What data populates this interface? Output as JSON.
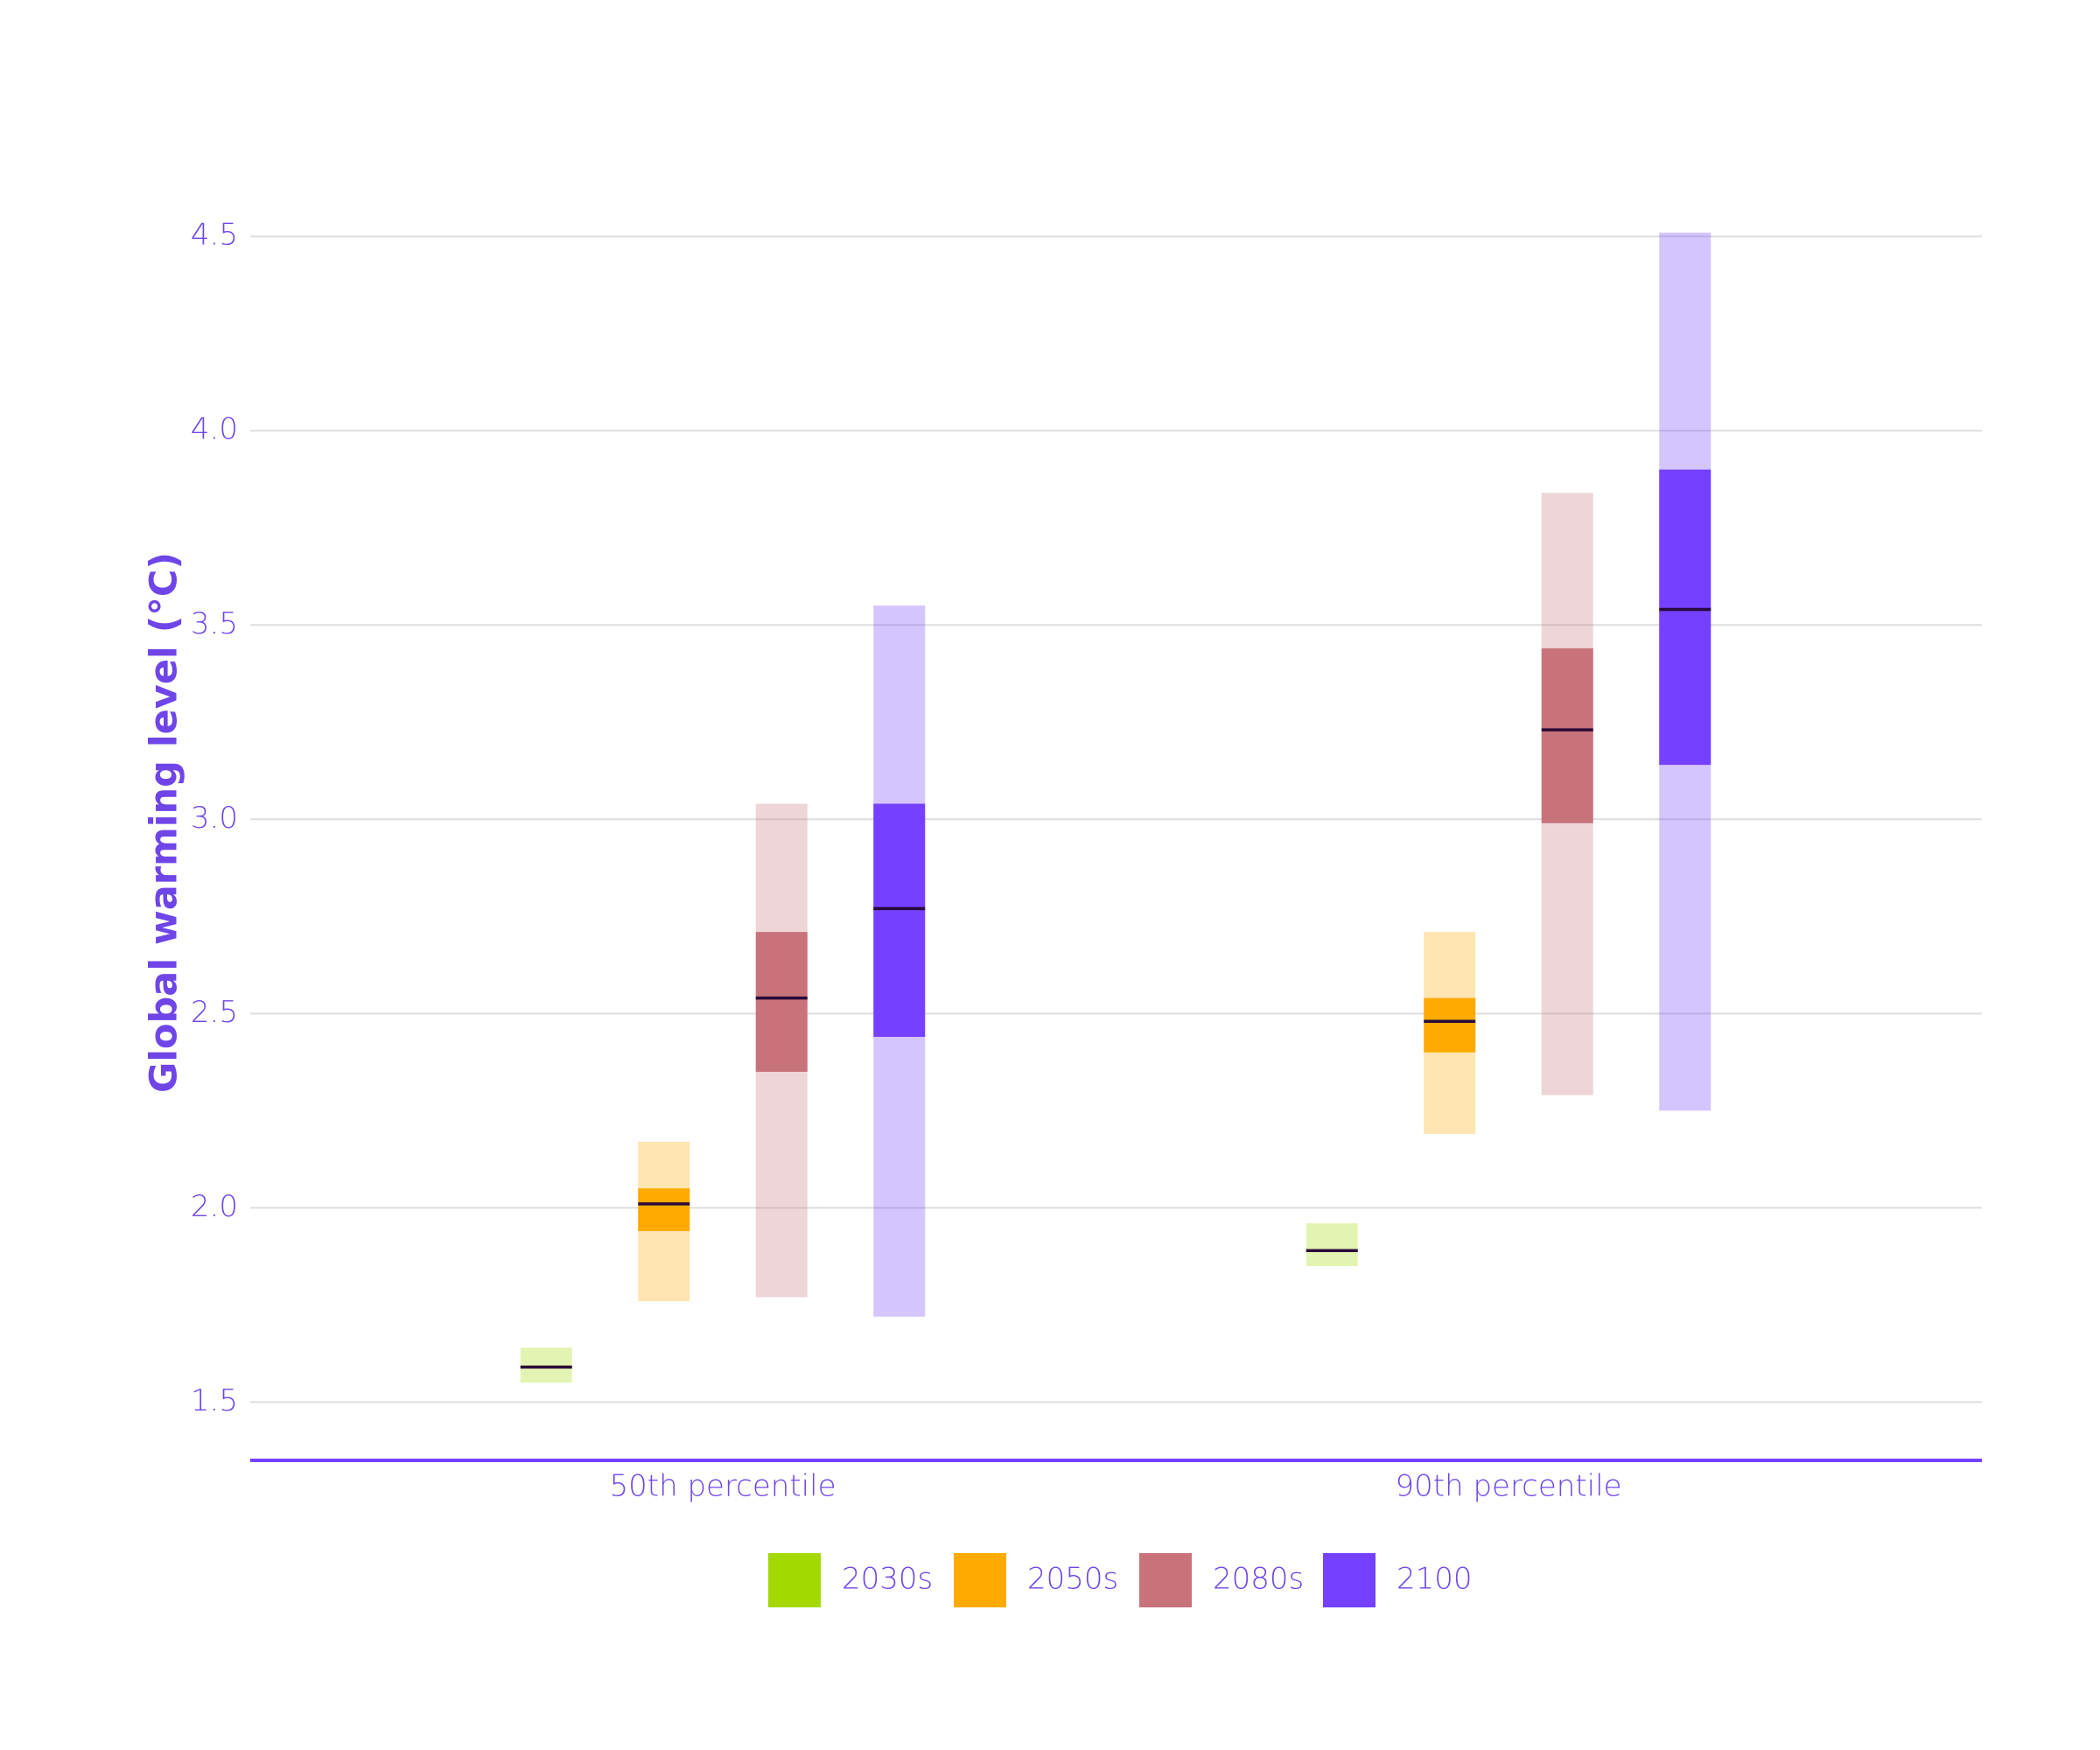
{
  "chart_data": {
    "type": "range",
    "y_label": "Global warming level (°C)",
    "categories": [
      "50th percentile",
      "90th percentile"
    ],
    "series": [
      {
        "name": "2030s",
        "color": "#a3d900",
        "min": [
          1.55,
          1.85
        ],
        "q_low": [
          null,
          null
        ],
        "median": [
          1.59,
          1.89
        ],
        "q_high": [
          null,
          null
        ],
        "max": [
          1.64,
          1.96
        ]
      },
      {
        "name": "2050s",
        "color": "#ffaa00",
        "min": [
          1.76,
          2.19
        ],
        "q_low": [
          1.94,
          2.4
        ],
        "median": [
          2.01,
          2.48
        ],
        "q_high": [
          2.05,
          2.54
        ],
        "max": [
          2.17,
          2.71
        ]
      },
      {
        "name": "2080s",
        "color": "#c8737a",
        "min": [
          1.77,
          2.29
        ],
        "q_low": [
          2.35,
          2.99
        ],
        "median": [
          2.54,
          3.23
        ],
        "q_high": [
          2.71,
          3.44
        ],
        "max": [
          3.04,
          3.84
        ]
      },
      {
        "name": "2100",
        "color": "#7540ff",
        "min": [
          1.72,
          2.25
        ],
        "q_low": [
          2.44,
          3.14
        ],
        "median": [
          2.77,
          3.54
        ],
        "q_high": [
          3.04,
          3.9
        ],
        "max": [
          3.55,
          4.51
        ]
      }
    ],
    "ylim": [
      1.35,
      4.55
    ],
    "yticks": [
      {
        "value": 1.5,
        "label": "1.5"
      },
      {
        "value": 2,
        "label": "2.0"
      },
      {
        "value": 2.5,
        "label": "2.5"
      },
      {
        "value": 3,
        "label": "3.0"
      },
      {
        "value": 3.5,
        "label": "3.5"
      },
      {
        "value": 4,
        "label": "4.0"
      },
      {
        "value": 4.5,
        "label": "4.5"
      }
    ],
    "grid": true,
    "legend": "bottom"
  }
}
